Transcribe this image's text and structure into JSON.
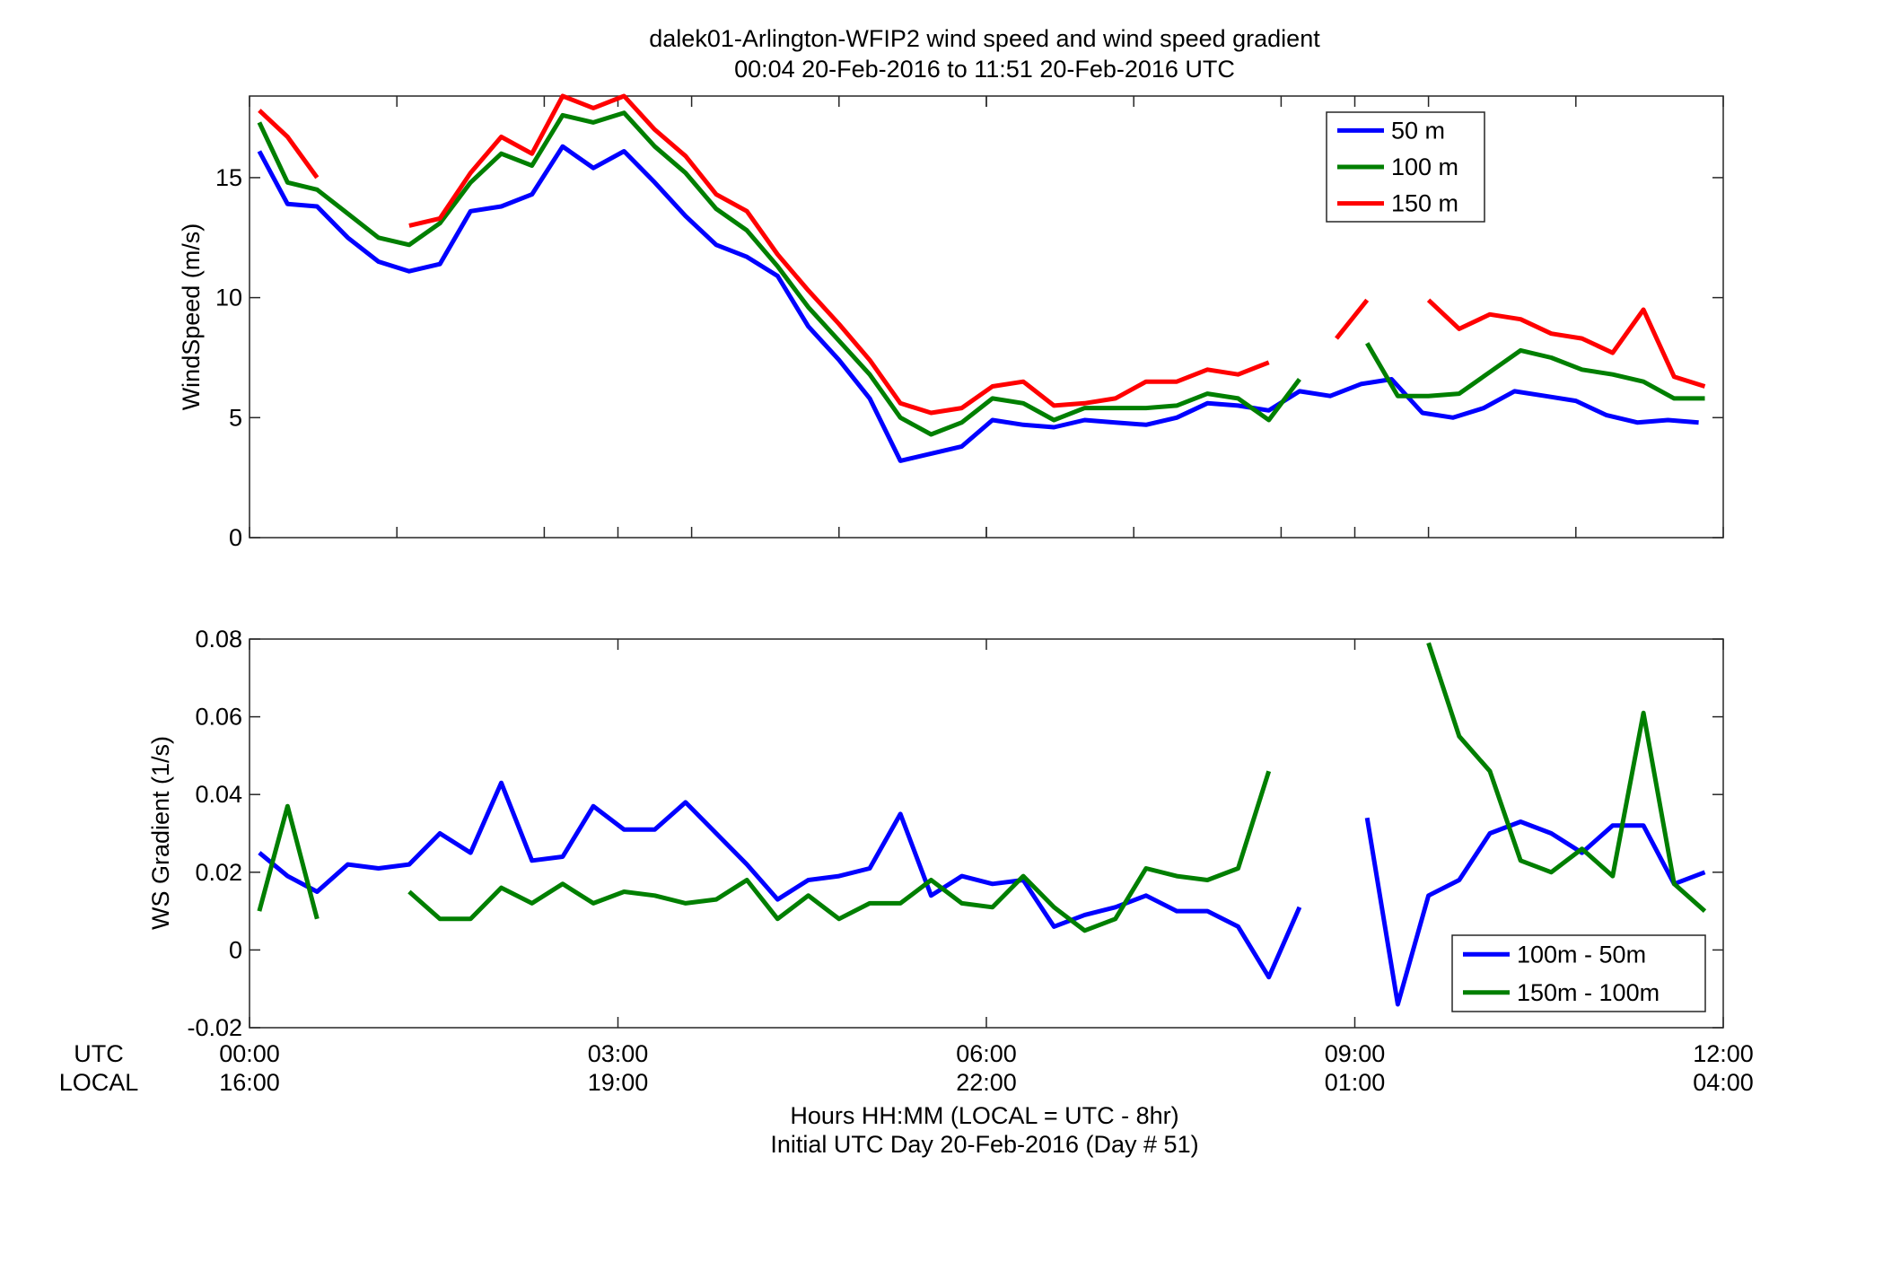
{
  "figure": {
    "title_line1": "dalek01-Arlington-WFIP2  wind speed and wind speed gradient",
    "title_line2": "00:04 20-Feb-2016 to 11:51 20-Feb-2016  UTC",
    "row_label_utc": "UTC",
    "row_label_local": "LOCAL",
    "xlabel_line1": "Hours HH:MM  (LOCAL = UTC - 8hr)",
    "xlabel_line2": "Initial UTC Day 20-Feb-2016 (Day # 51)"
  },
  "chart_data": [
    {
      "type": "line",
      "title": "",
      "ylabel": "WindSpeed (m/s)",
      "xlim": [
        0,
        12
      ],
      "ylim": [
        0,
        18.4
      ],
      "yticks": [
        0,
        5,
        10,
        15
      ],
      "xticks_utc": [
        "00:00",
        "03:00",
        "06:00",
        "09:00",
        "12:00"
      ],
      "xticks_local": [
        "16:00",
        "19:00",
        "22:00",
        "01:00",
        "04:00"
      ],
      "x_minor_ticks": [
        1.2,
        2.4,
        3.6,
        4.8,
        6.0,
        7.2,
        8.4,
        9.6,
        10.8
      ],
      "grid": false,
      "legend_position": "top-right",
      "series": [
        {
          "name": "50 m",
          "color": "#0000ff",
          "points": [
            [
              0.08,
              16.1
            ],
            [
              0.31,
              13.9
            ],
            [
              0.55,
              13.8
            ],
            [
              0.8,
              12.5
            ],
            [
              1.05,
              11.5
            ],
            [
              1.3,
              11.1
            ],
            [
              1.55,
              11.4
            ],
            [
              1.8,
              13.6
            ],
            [
              2.05,
              13.8
            ],
            [
              2.3,
              14.3
            ],
            [
              2.55,
              16.3
            ],
            [
              2.8,
              15.4
            ],
            [
              3.05,
              16.1
            ],
            [
              3.3,
              14.8
            ],
            [
              3.55,
              13.4
            ],
            [
              3.8,
              12.2
            ],
            [
              4.05,
              11.7
            ],
            [
              4.3,
              10.9
            ],
            [
              4.55,
              8.8
            ],
            [
              4.8,
              7.4
            ],
            [
              5.05,
              5.8
            ],
            [
              5.3,
              3.2
            ],
            [
              5.55,
              3.5
            ],
            [
              5.8,
              3.8
            ],
            [
              6.05,
              4.9
            ],
            [
              6.3,
              4.7
            ],
            [
              6.55,
              4.6
            ],
            [
              6.8,
              4.9
            ],
            [
              7.05,
              4.8
            ],
            [
              7.3,
              4.7
            ],
            [
              7.55,
              5.0
            ],
            [
              7.8,
              5.6
            ],
            [
              8.05,
              5.5
            ],
            [
              8.3,
              5.3
            ],
            [
              8.55,
              6.1
            ],
            [
              8.8,
              5.9
            ],
            [
              9.05,
              6.4
            ],
            [
              9.3,
              6.6
            ],
            [
              9.55,
              5.2
            ],
            [
              9.8,
              5.0
            ],
            [
              10.05,
              5.4
            ],
            [
              10.3,
              6.1
            ],
            [
              10.55,
              5.9
            ],
            [
              10.8,
              5.7
            ],
            [
              11.05,
              5.1
            ],
            [
              11.3,
              4.8
            ],
            [
              11.55,
              4.9
            ],
            [
              11.8,
              4.8
            ]
          ]
        },
        {
          "name": "100 m",
          "color": "#007f00",
          "points": [
            [
              0.08,
              17.3
            ],
            [
              0.31,
              14.8
            ],
            [
              0.55,
              14.5
            ],
            [
              0.8,
              13.5
            ],
            [
              1.05,
              12.5
            ],
            [
              1.3,
              12.2
            ],
            [
              1.55,
              13.1
            ],
            [
              1.8,
              14.8
            ],
            [
              2.05,
              16.0
            ],
            [
              2.3,
              15.5
            ],
            [
              2.55,
              17.6
            ],
            [
              2.8,
              17.3
            ],
            [
              3.05,
              17.7
            ],
            [
              3.3,
              16.3
            ],
            [
              3.55,
              15.2
            ],
            [
              3.8,
              13.7
            ],
            [
              4.05,
              12.8
            ],
            [
              4.3,
              11.3
            ],
            [
              4.55,
              9.6
            ],
            [
              4.8,
              8.2
            ],
            [
              5.05,
              6.8
            ],
            [
              5.3,
              5.0
            ],
            [
              5.55,
              4.3
            ],
            [
              5.8,
              4.8
            ],
            [
              6.05,
              5.8
            ],
            [
              6.3,
              5.6
            ],
            [
              6.55,
              4.9
            ],
            [
              6.8,
              5.4
            ],
            [
              7.05,
              5.4
            ],
            [
              7.3,
              5.4
            ],
            [
              7.55,
              5.5
            ],
            [
              7.8,
              6.0
            ],
            [
              8.05,
              5.8
            ],
            [
              8.3,
              4.9
            ],
            [
              8.55,
              6.6
            ],
            null,
            [
              9.1,
              8.1
            ],
            [
              9.35,
              5.9
            ],
            [
              9.6,
              5.9
            ],
            [
              9.85,
              6.0
            ],
            [
              10.1,
              6.9
            ],
            [
              10.35,
              7.8
            ],
            [
              10.6,
              7.5
            ],
            [
              10.85,
              7.0
            ],
            [
              11.1,
              6.8
            ],
            [
              11.35,
              6.5
            ],
            [
              11.6,
              5.8
            ],
            [
              11.85,
              5.8
            ]
          ]
        },
        {
          "name": "150 m",
          "color": "#ff0000",
          "points": [
            [
              0.08,
              17.8
            ],
            [
              0.31,
              16.7
            ],
            [
              0.55,
              15.0
            ],
            null,
            [
              1.3,
              13.0
            ],
            [
              1.55,
              13.3
            ],
            [
              1.8,
              15.2
            ],
            [
              2.05,
              16.7
            ],
            [
              2.3,
              16.0
            ],
            [
              2.55,
              18.4
            ],
            [
              2.8,
              17.9
            ],
            [
              3.05,
              18.4
            ],
            [
              3.3,
              17.0
            ],
            [
              3.55,
              15.9
            ],
            [
              3.8,
              14.3
            ],
            [
              4.05,
              13.6
            ],
            [
              4.3,
              11.8
            ],
            [
              4.55,
              10.3
            ],
            [
              4.8,
              8.9
            ],
            [
              5.05,
              7.4
            ],
            [
              5.3,
              5.6
            ],
            [
              5.55,
              5.2
            ],
            [
              5.8,
              5.4
            ],
            [
              6.05,
              6.3
            ],
            [
              6.3,
              6.5
            ],
            [
              6.55,
              5.5
            ],
            [
              6.8,
              5.6
            ],
            [
              7.05,
              5.8
            ],
            [
              7.3,
              6.5
            ],
            [
              7.55,
              6.5
            ],
            [
              7.8,
              7.0
            ],
            [
              8.05,
              6.8
            ],
            [
              8.3,
              7.3
            ],
            null,
            [
              8.85,
              8.3
            ],
            [
              9.1,
              9.9
            ],
            null,
            [
              9.6,
              9.9
            ],
            [
              9.85,
              8.7
            ],
            [
              10.1,
              9.3
            ],
            [
              10.35,
              9.1
            ],
            [
              10.6,
              8.5
            ],
            [
              10.85,
              8.3
            ],
            [
              11.1,
              7.7
            ],
            [
              11.35,
              9.5
            ],
            [
              11.6,
              6.7
            ],
            [
              11.85,
              6.3
            ]
          ]
        }
      ]
    },
    {
      "type": "line",
      "title": "",
      "ylabel": "WS Gradient (1/s)",
      "xlim": [
        0,
        12
      ],
      "ylim": [
        -0.02,
        0.08
      ],
      "yticks": [
        -0.02,
        0,
        0.02,
        0.04,
        0.06,
        0.08
      ],
      "ytick_labels": [
        "-0.02",
        "0",
        "0.02",
        "0.04",
        "0.06",
        "0.08"
      ],
      "xticks_utc": [
        "00:00",
        "03:00",
        "06:00",
        "09:00",
        "12:00"
      ],
      "xticks_local": [
        "16:00",
        "19:00",
        "22:00",
        "01:00",
        "04:00"
      ],
      "grid": false,
      "legend_position": "bottom-right",
      "series": [
        {
          "name": "100m - 50m",
          "color": "#0000ff",
          "points": [
            [
              0.08,
              0.025
            ],
            [
              0.31,
              0.019
            ],
            [
              0.55,
              0.015
            ],
            [
              0.8,
              0.022
            ],
            [
              1.05,
              0.021
            ],
            [
              1.3,
              0.022
            ],
            [
              1.55,
              0.03
            ],
            [
              1.8,
              0.025
            ],
            [
              2.05,
              0.043
            ],
            [
              2.3,
              0.023
            ],
            [
              2.55,
              0.024
            ],
            [
              2.8,
              0.037
            ],
            [
              3.05,
              0.031
            ],
            [
              3.3,
              0.031
            ],
            [
              3.55,
              0.038
            ],
            [
              3.8,
              0.03
            ],
            [
              4.05,
              0.022
            ],
            [
              4.3,
              0.013
            ],
            [
              4.55,
              0.018
            ],
            [
              4.8,
              0.019
            ],
            [
              5.05,
              0.021
            ],
            [
              5.3,
              0.035
            ],
            [
              5.55,
              0.014
            ],
            [
              5.8,
              0.019
            ],
            [
              6.05,
              0.017
            ],
            [
              6.3,
              0.018
            ],
            [
              6.55,
              0.006
            ],
            [
              6.8,
              0.009
            ],
            [
              7.05,
              0.011
            ],
            [
              7.3,
              0.014
            ],
            [
              7.55,
              0.01
            ],
            [
              7.8,
              0.01
            ],
            [
              8.05,
              0.006
            ],
            [
              8.3,
              -0.007
            ],
            [
              8.55,
              0.011
            ],
            null,
            [
              9.1,
              0.034
            ],
            [
              9.35,
              -0.014
            ],
            [
              9.6,
              0.014
            ],
            [
              9.85,
              0.018
            ],
            [
              10.1,
              0.03
            ],
            [
              10.35,
              0.033
            ],
            [
              10.6,
              0.03
            ],
            [
              10.85,
              0.025
            ],
            [
              11.1,
              0.032
            ],
            [
              11.35,
              0.032
            ],
            [
              11.6,
              0.017
            ],
            [
              11.85,
              0.02
            ]
          ]
        },
        {
          "name": "150m - 100m",
          "color": "#007f00",
          "points": [
            [
              0.08,
              0.01
            ],
            [
              0.31,
              0.037
            ],
            [
              0.55,
              0.008
            ],
            null,
            [
              1.3,
              0.015
            ],
            [
              1.55,
              0.008
            ],
            [
              1.8,
              0.008
            ],
            [
              2.05,
              0.016
            ],
            [
              2.3,
              0.012
            ],
            [
              2.55,
              0.017
            ],
            [
              2.8,
              0.012
            ],
            [
              3.05,
              0.015
            ],
            [
              3.3,
              0.014
            ],
            [
              3.55,
              0.012
            ],
            [
              3.8,
              0.013
            ],
            [
              4.05,
              0.018
            ],
            [
              4.3,
              0.008
            ],
            [
              4.55,
              0.014
            ],
            [
              4.8,
              0.008
            ],
            [
              5.05,
              0.012
            ],
            [
              5.3,
              0.012
            ],
            [
              5.55,
              0.018
            ],
            [
              5.8,
              0.012
            ],
            [
              6.05,
              0.011
            ],
            [
              6.3,
              0.019
            ],
            [
              6.55,
              0.011
            ],
            [
              6.8,
              0.005
            ],
            [
              7.05,
              0.008
            ],
            [
              7.3,
              0.021
            ],
            [
              7.55,
              0.019
            ],
            [
              7.8,
              0.018
            ],
            [
              8.05,
              0.021
            ],
            [
              8.3,
              0.046
            ],
            null,
            [
              9.6,
              0.079
            ],
            [
              9.85,
              0.055
            ],
            [
              10.1,
              0.046
            ],
            [
              10.35,
              0.023
            ],
            [
              10.6,
              0.02
            ],
            [
              10.85,
              0.026
            ],
            [
              11.1,
              0.019
            ],
            [
              11.35,
              0.061
            ],
            [
              11.6,
              0.017
            ],
            [
              11.85,
              0.01
            ]
          ]
        }
      ]
    }
  ]
}
